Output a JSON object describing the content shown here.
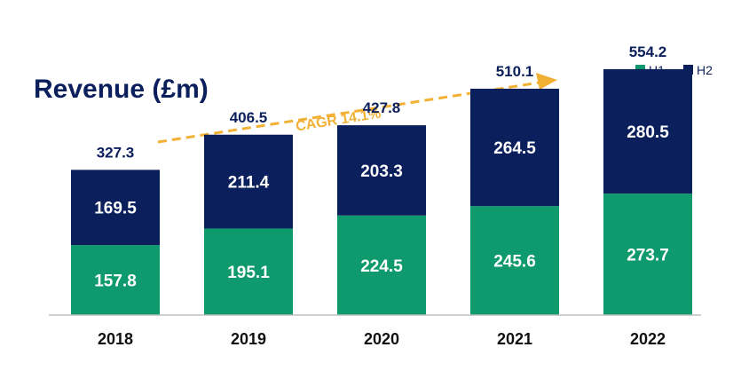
{
  "chart_data": {
    "type": "bar",
    "stacked": true,
    "title": "Revenue (£m)",
    "categories": [
      "2018",
      "2019",
      "2020",
      "2021",
      "2022"
    ],
    "series": [
      {
        "name": "H1",
        "values": [
          157.8,
          195.1,
          224.5,
          245.6,
          273.7
        ],
        "color": "#0f9a6e"
      },
      {
        "name": "H2",
        "values": [
          169.5,
          211.4,
          203.3,
          264.5,
          280.5
        ],
        "color": "#0b1f5c"
      }
    ],
    "totals": [
      327.3,
      406.5,
      427.8,
      510.1,
      554.2
    ],
    "ylim": [
      0,
      600
    ],
    "legend": "top-right",
    "grid": false,
    "annotation": {
      "text": "CAGR 14.1%",
      "color": "#f2b134"
    },
    "axis_color": "#bfbfbf"
  }
}
